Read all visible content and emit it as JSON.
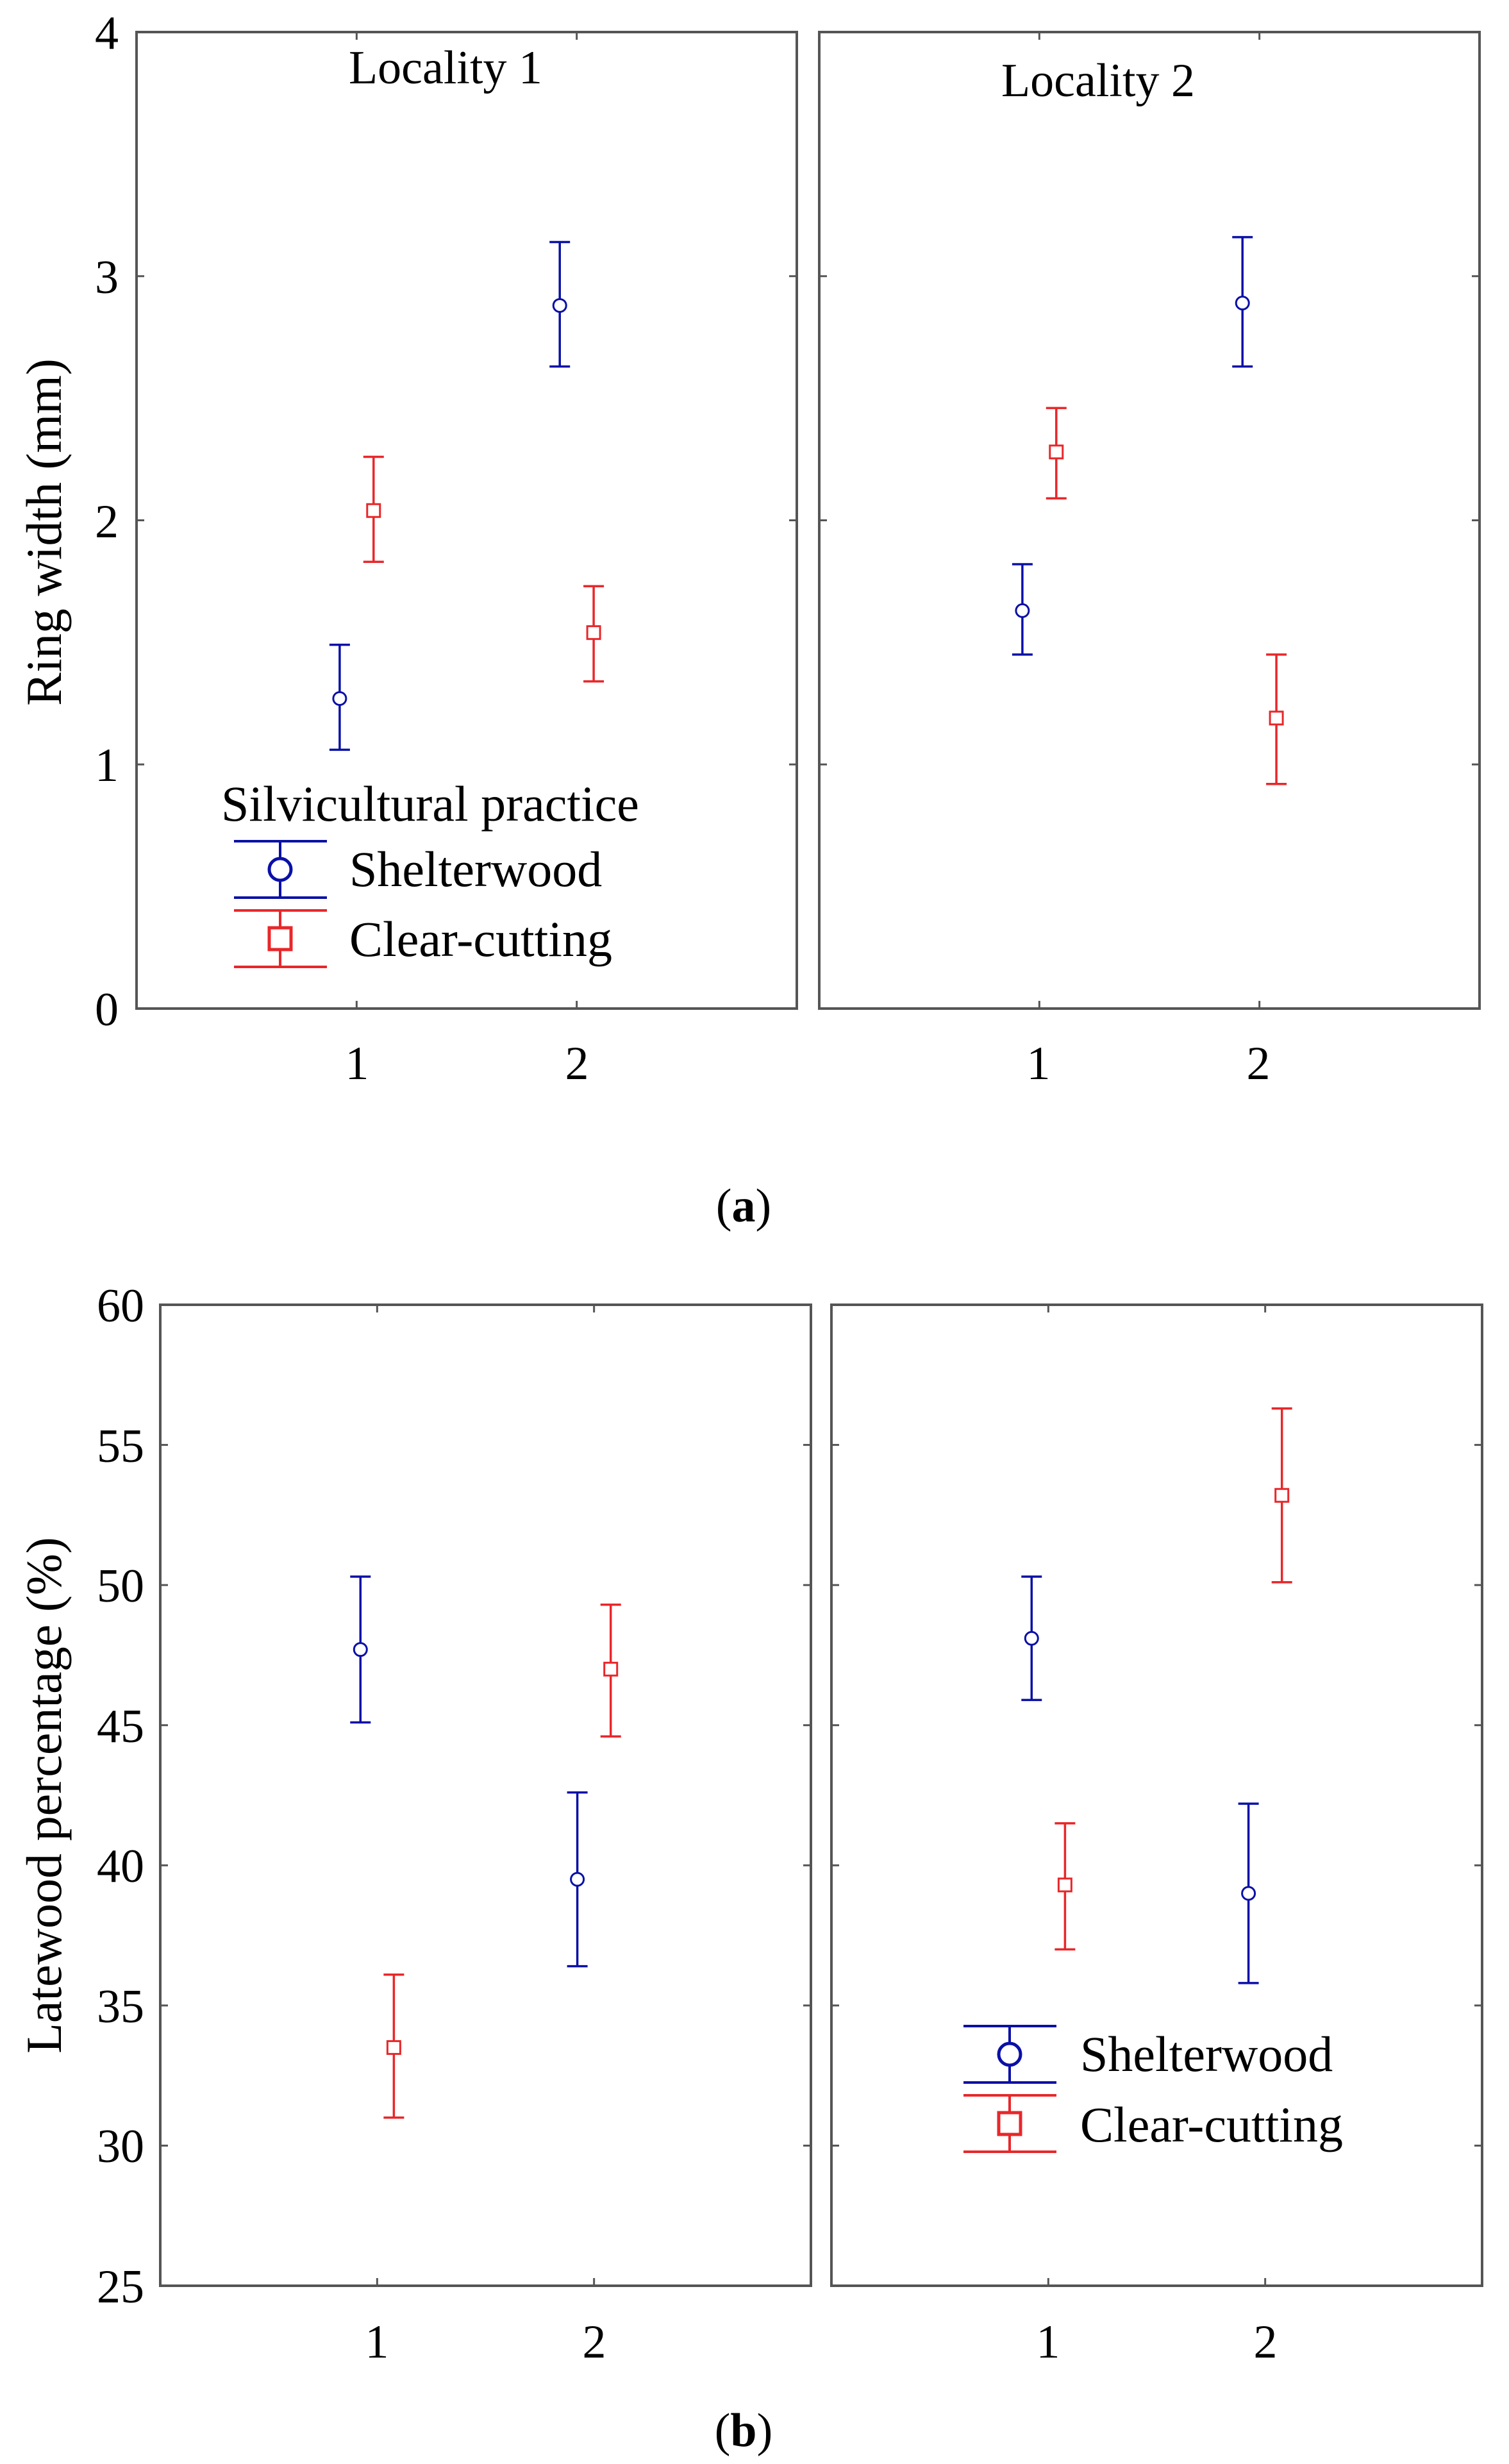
{
  "figure": {
    "colors": {
      "shelterwood": "#0a10a6",
      "clear_cutting": "#e8272a",
      "frame": "#555555"
    },
    "subfigure_a": {
      "caption_open": "(",
      "caption_letter": "a",
      "caption_close": ")"
    },
    "subfigure_b": {
      "caption_open": "(",
      "caption_letter": "b",
      "caption_close": ")"
    }
  },
  "chart_data": [
    {
      "id": "a",
      "type": "scatter",
      "title": "",
      "xlabel": "",
      "ylabel": "Ring width (mm)",
      "ylim": [
        0,
        4
      ],
      "yticks": [
        "0",
        "1",
        "2",
        "3",
        "4"
      ],
      "ytick_values": [
        0,
        1,
        2,
        3,
        4
      ],
      "xticks": [
        "1",
        "2"
      ],
      "xtick_values": [
        1,
        2
      ],
      "xlim": [
        0,
        3
      ],
      "grid": false,
      "legend": {
        "title": "Silvicultural practice",
        "placement": "bottom-left of left panel",
        "entries": [
          "Shelterwood",
          "Clear-cutting"
        ]
      },
      "panels": [
        {
          "title": "Locality 1",
          "series": [
            {
              "name": "Shelterwood",
              "marker": "circle",
              "x": [
                1,
                2
              ],
              "values": [
                1.27,
                2.88
              ],
              "lower": [
                1.06,
                2.63
              ],
              "upper": [
                1.49,
                3.14
              ]
            },
            {
              "name": "Clear-cutting",
              "marker": "square",
              "x": [
                1,
                2
              ],
              "values": [
                2.04,
                1.54
              ],
              "lower": [
                1.83,
                1.34
              ],
              "upper": [
                2.26,
                1.73
              ]
            }
          ]
        },
        {
          "title": "Locality 2",
          "series": [
            {
              "name": "Shelterwood",
              "marker": "circle",
              "x": [
                1,
                2
              ],
              "values": [
                1.63,
                2.89
              ],
              "lower": [
                1.45,
                2.63
              ],
              "upper": [
                1.82,
                3.16
              ]
            },
            {
              "name": "Clear-cutting",
              "marker": "square",
              "x": [
                1,
                2
              ],
              "values": [
                2.28,
                1.19
              ],
              "lower": [
                2.09,
                0.92
              ],
              "upper": [
                2.46,
                1.45
              ]
            }
          ]
        }
      ]
    },
    {
      "id": "b",
      "type": "scatter",
      "title": "",
      "xlabel": "",
      "ylabel": "Latewood percentage (%)",
      "ylim": [
        25,
        60
      ],
      "yticks": [
        "25",
        "30",
        "35",
        "40",
        "45",
        "50",
        "55",
        "60"
      ],
      "ytick_values": [
        25,
        30,
        35,
        40,
        45,
        50,
        55,
        60
      ],
      "xticks": [
        "1",
        "2"
      ],
      "xtick_values": [
        1,
        2
      ],
      "xlim": [
        0,
        3
      ],
      "grid": false,
      "legend": {
        "title": "",
        "placement": "bottom-right of right panel",
        "entries": [
          "Shelterwood",
          "Clear-cutting"
        ]
      },
      "panels": [
        {
          "title": "",
          "series": [
            {
              "name": "Shelterwood",
              "marker": "circle",
              "x": [
                1,
                2
              ],
              "values": [
                47.7,
                39.5
              ],
              "lower": [
                45.1,
                36.4
              ],
              "upper": [
                50.3,
                42.6
              ]
            },
            {
              "name": "Clear-cutting",
              "marker": "square",
              "x": [
                1,
                2
              ],
              "values": [
                33.5,
                47.0
              ],
              "lower": [
                31.0,
                44.6
              ],
              "upper": [
                36.1,
                49.3
              ]
            }
          ]
        },
        {
          "title": "",
          "series": [
            {
              "name": "Shelterwood",
              "marker": "circle",
              "x": [
                1,
                2
              ],
              "values": [
                48.1,
                39.0
              ],
              "lower": [
                45.9,
                35.8
              ],
              "upper": [
                50.3,
                42.2
              ]
            },
            {
              "name": "Clear-cutting",
              "marker": "square",
              "x": [
                1,
                2
              ],
              "values": [
                39.3,
                53.2
              ],
              "lower": [
                37.0,
                50.1
              ],
              "upper": [
                41.5,
                56.3
              ]
            }
          ]
        }
      ]
    }
  ]
}
